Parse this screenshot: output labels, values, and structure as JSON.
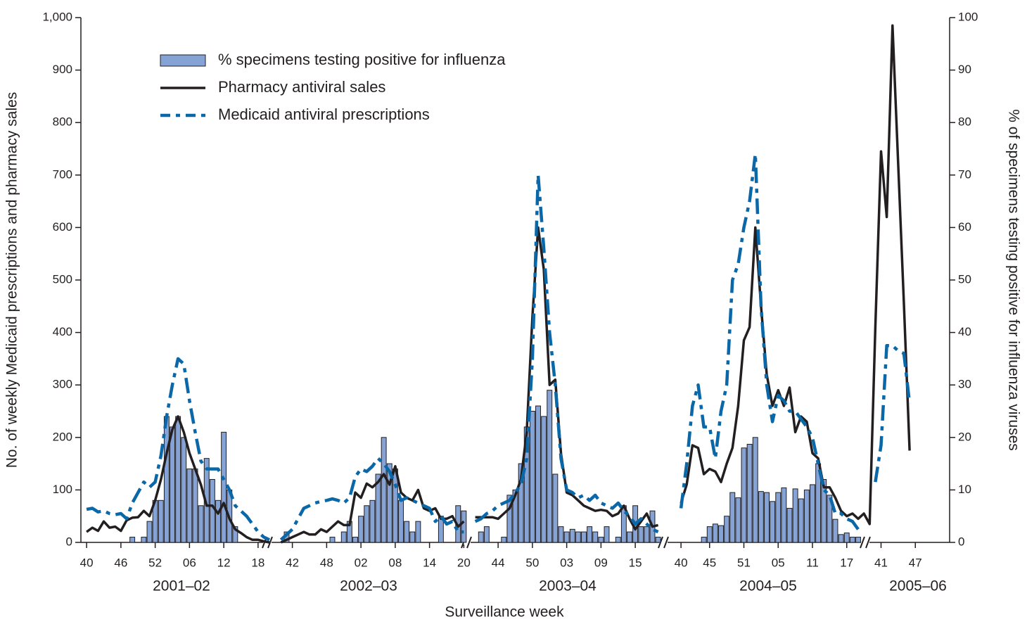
{
  "chart_data": {
    "type": "combo",
    "xlabel": "Surveillance week",
    "ylabel": "No. of weekly Medicaid prescriptions and pharmacy sales",
    "y2label": "% of specimens testing positive for influenza viruses",
    "legend": "upper left",
    "annotations": [
      "2001–02",
      "2002–03",
      "2003–04",
      "2004–05",
      "2005–06"
    ],
    "xlim": [
      -1,
      151
    ],
    "ylim": [
      0,
      1000
    ],
    "y2lim": [
      0,
      100
    ],
    "yticks": [
      0,
      100,
      200,
      300,
      400,
      500,
      600,
      700,
      800,
      900,
      {
        "value": 1000,
        "label": "1,000"
      }
    ],
    "y2ticks": [
      0,
      10,
      20,
      30,
      40,
      50,
      60,
      70,
      80,
      90,
      100
    ],
    "xticks": [
      {
        "value": 0,
        "label": "40"
      },
      {
        "value": 6,
        "label": "46"
      },
      {
        "value": 12,
        "label": "52"
      },
      {
        "value": 18,
        "label": "06"
      },
      {
        "value": 24,
        "label": "12"
      },
      {
        "value": 30,
        "label": "18"
      },
      {
        "value": 36,
        "label": "42"
      },
      {
        "value": 42,
        "label": "48"
      },
      {
        "value": 48,
        "label": "02"
      },
      {
        "value": 54,
        "label": "08"
      },
      {
        "value": 60,
        "label": "14"
      },
      {
        "value": 66,
        "label": "20"
      },
      {
        "value": 72,
        "label": "44"
      },
      {
        "value": 78,
        "label": "50"
      },
      {
        "value": 84,
        "label": "03"
      },
      {
        "value": 90,
        "label": "09"
      },
      {
        "value": 96,
        "label": "15"
      },
      {
        "value": 104,
        "label": "40"
      },
      {
        "value": 109,
        "label": "45"
      },
      {
        "value": 115,
        "label": "51"
      },
      {
        "value": 121,
        "label": "05"
      },
      {
        "value": 127,
        "label": "11"
      },
      {
        "value": 133,
        "label": "17"
      },
      {
        "value": 139,
        "label": "41"
      },
      {
        "value": 145,
        "label": "47"
      }
    ],
    "x": [
      0,
      1,
      2,
      3,
      4,
      5,
      6,
      7,
      8,
      9,
      10,
      11,
      12,
      13,
      14,
      15,
      16,
      17,
      18,
      19,
      20,
      21,
      22,
      23,
      24,
      25,
      26,
      27,
      28,
      29,
      30,
      31,
      32,
      33,
      34,
      35,
      36,
      37,
      38,
      39,
      40,
      41,
      42,
      43,
      44,
      45,
      46,
      47,
      48,
      49,
      50,
      51,
      52,
      53,
      54,
      55,
      56,
      57,
      58,
      59,
      60,
      61,
      62,
      63,
      64,
      65,
      66,
      67,
      68,
      69,
      70,
      71,
      72,
      73,
      74,
      75,
      76,
      77,
      78,
      79,
      80,
      81,
      82,
      83,
      84,
      85,
      86,
      87,
      88,
      89,
      90,
      91,
      92,
      93,
      94,
      95,
      96,
      97,
      98,
      99,
      100,
      101,
      102,
      103,
      104,
      105,
      106,
      107,
      108,
      109,
      110,
      111,
      112,
      113,
      114,
      115,
      116,
      117,
      118,
      119,
      120,
      121,
      122,
      123,
      124,
      125,
      126,
      127,
      128,
      129,
      130,
      131,
      132,
      133,
      134,
      135,
      136,
      137,
      138,
      139,
      140,
      141,
      142,
      143,
      144
    ],
    "series": [
      {
        "name": "% specimens testing positive for influenza",
        "type": "bar",
        "axis": "y2",
        "color": "#86a3d6",
        "values": [
          0,
          0,
          0,
          0,
          0,
          0,
          0,
          0,
          1,
          0,
          1,
          4,
          8,
          8,
          24,
          22,
          24,
          20,
          14,
          14,
          7,
          16,
          12,
          8,
          21,
          10,
          3,
          0,
          0,
          0,
          0,
          0,
          0,
          null,
          0,
          2,
          0,
          0,
          0,
          0,
          0,
          0,
          0,
          1,
          0,
          2,
          4,
          1,
          5,
          7,
          8,
          13,
          20,
          15,
          14,
          8,
          4,
          2,
          4,
          0,
          0,
          0,
          5,
          0,
          0,
          7,
          6,
          null,
          0,
          2,
          3,
          0,
          0,
          1,
          9,
          10,
          15,
          22,
          25,
          26,
          24,
          29,
          13,
          3,
          2,
          2.5,
          2,
          2,
          3,
          2,
          1,
          3,
          0,
          1,
          7,
          2,
          7,
          3,
          3,
          6,
          1,
          null,
          null,
          null,
          0,
          0,
          0,
          0,
          1,
          3,
          3.5,
          3.2,
          5,
          9.5,
          8.5,
          18,
          18.7,
          20,
          9.7,
          9.5,
          7.8,
          9.5,
          10.4,
          6.5,
          10.2,
          8.3,
          10,
          11,
          15,
          12,
          9,
          4.4,
          1.5,
          1.8,
          1,
          1,
          0,
          0,
          null,
          null,
          null,
          null,
          null,
          null,
          null
        ]
      },
      {
        "name": "Pharmacy antiviral sales",
        "type": "line",
        "color": "#231f20",
        "values": [
          20,
          28,
          22,
          40,
          28,
          30,
          22,
          42,
          47,
          48,
          60,
          50,
          80,
          120,
          170,
          215,
          240,
          210,
          170,
          140,
          110,
          70,
          70,
          55,
          75,
          45,
          25,
          18,
          10,
          5,
          5,
          2,
          0,
          null,
          0,
          5,
          10,
          15,
          20,
          15,
          15,
          25,
          20,
          30,
          40,
          33,
          33,
          95,
          85,
          112,
          105,
          115,
          130,
          110,
          145,
          95,
          85,
          80,
          100,
          65,
          60,
          65,
          45,
          45,
          50,
          30,
          40,
          null,
          48,
          48,
          48,
          48,
          45,
          55,
          65,
          90,
          120,
          210,
          430,
          600,
          520,
          300,
          310,
          170,
          95,
          90,
          80,
          70,
          65,
          60,
          62,
          60,
          50,
          55,
          70,
          45,
          25,
          40,
          55,
          30,
          33,
          null,
          null,
          null,
          75,
          110,
          185,
          180,
          130,
          140,
          135,
          115,
          150,
          180,
          260,
          385,
          410,
          600,
          450,
          320,
          260,
          290,
          260,
          295,
          210,
          240,
          230,
          170,
          160,
          105,
          105,
          85,
          60,
          50,
          55,
          45,
          55,
          35,
          410,
          745,
          620,
          985,
          720,
          455,
          175
        ]
      },
      {
        "name": "Medicaid antiviral prescriptions",
        "type": "line",
        "style": "dash-dot",
        "color": "#0a67a8",
        "values": [
          63,
          65,
          58,
          60,
          55,
          53,
          55,
          45,
          75,
          95,
          115,
          105,
          115,
          165,
          240,
          300,
          350,
          340,
          270,
          210,
          155,
          140,
          140,
          140,
          120,
          100,
          70,
          60,
          50,
          35,
          20,
          10,
          5,
          null,
          5,
          15,
          25,
          45,
          65,
          70,
          75,
          78,
          80,
          83,
          80,
          75,
          85,
          125,
          140,
          135,
          145,
          160,
          150,
          135,
          110,
          80,
          85,
          80,
          75,
          70,
          65,
          40,
          50,
          35,
          40,
          20,
          20,
          null,
          40,
          45,
          55,
          60,
          70,
          75,
          80,
          95,
          110,
          160,
          350,
          700,
          560,
          400,
          300,
          160,
          100,
          95,
          85,
          90,
          80,
          90,
          75,
          70,
          65,
          75,
          60,
          50,
          35,
          45,
          35,
          25,
          20,
          null,
          null,
          null,
          65,
          150,
          260,
          300,
          220,
          220,
          160,
          250,
          300,
          500,
          530,
          600,
          650,
          740,
          450,
          300,
          230,
          280,
          270,
          250,
          250,
          235,
          220,
          200,
          150,
          100,
          90,
          55,
          55,
          45,
          40,
          25,
          null,
          null,
          115,
          185,
          375,
          375,
          365,
          360,
          265
        ]
      }
    ]
  }
}
